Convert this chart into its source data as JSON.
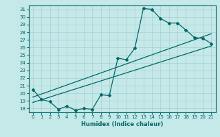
{
  "xlabel": "Humidex (Indice chaleur)",
  "bg_color": "#c5e8e8",
  "grid_color": "#a8d0d0",
  "line_color": "#006868",
  "xlim": [
    -0.5,
    21.5
  ],
  "ylim": [
    17.5,
    31.5
  ],
  "xticks": [
    0,
    1,
    2,
    3,
    4,
    5,
    6,
    7,
    8,
    9,
    10,
    11,
    12,
    13,
    14,
    15,
    16,
    17,
    18,
    19,
    20,
    21
  ],
  "yticks": [
    18,
    19,
    20,
    21,
    22,
    23,
    24,
    25,
    26,
    27,
    28,
    29,
    30,
    31
  ],
  "line1_x": [
    0,
    1,
    2,
    3,
    4,
    5,
    6,
    7,
    8,
    9,
    10,
    11,
    12,
    13,
    14,
    15,
    16,
    17,
    18,
    19,
    20,
    21
  ],
  "line1_y": [
    20.5,
    19.2,
    18.9,
    17.9,
    18.3,
    17.8,
    18.0,
    17.9,
    19.8,
    19.7,
    24.6,
    24.4,
    25.9,
    31.1,
    31.0,
    29.8,
    29.2,
    29.2,
    28.3,
    27.3,
    27.2,
    26.5
  ],
  "line2_x": [
    0,
    21
  ],
  "line2_y": [
    19.5,
    27.8
  ],
  "line3_x": [
    0,
    21
  ],
  "line3_y": [
    18.8,
    26.2
  ]
}
